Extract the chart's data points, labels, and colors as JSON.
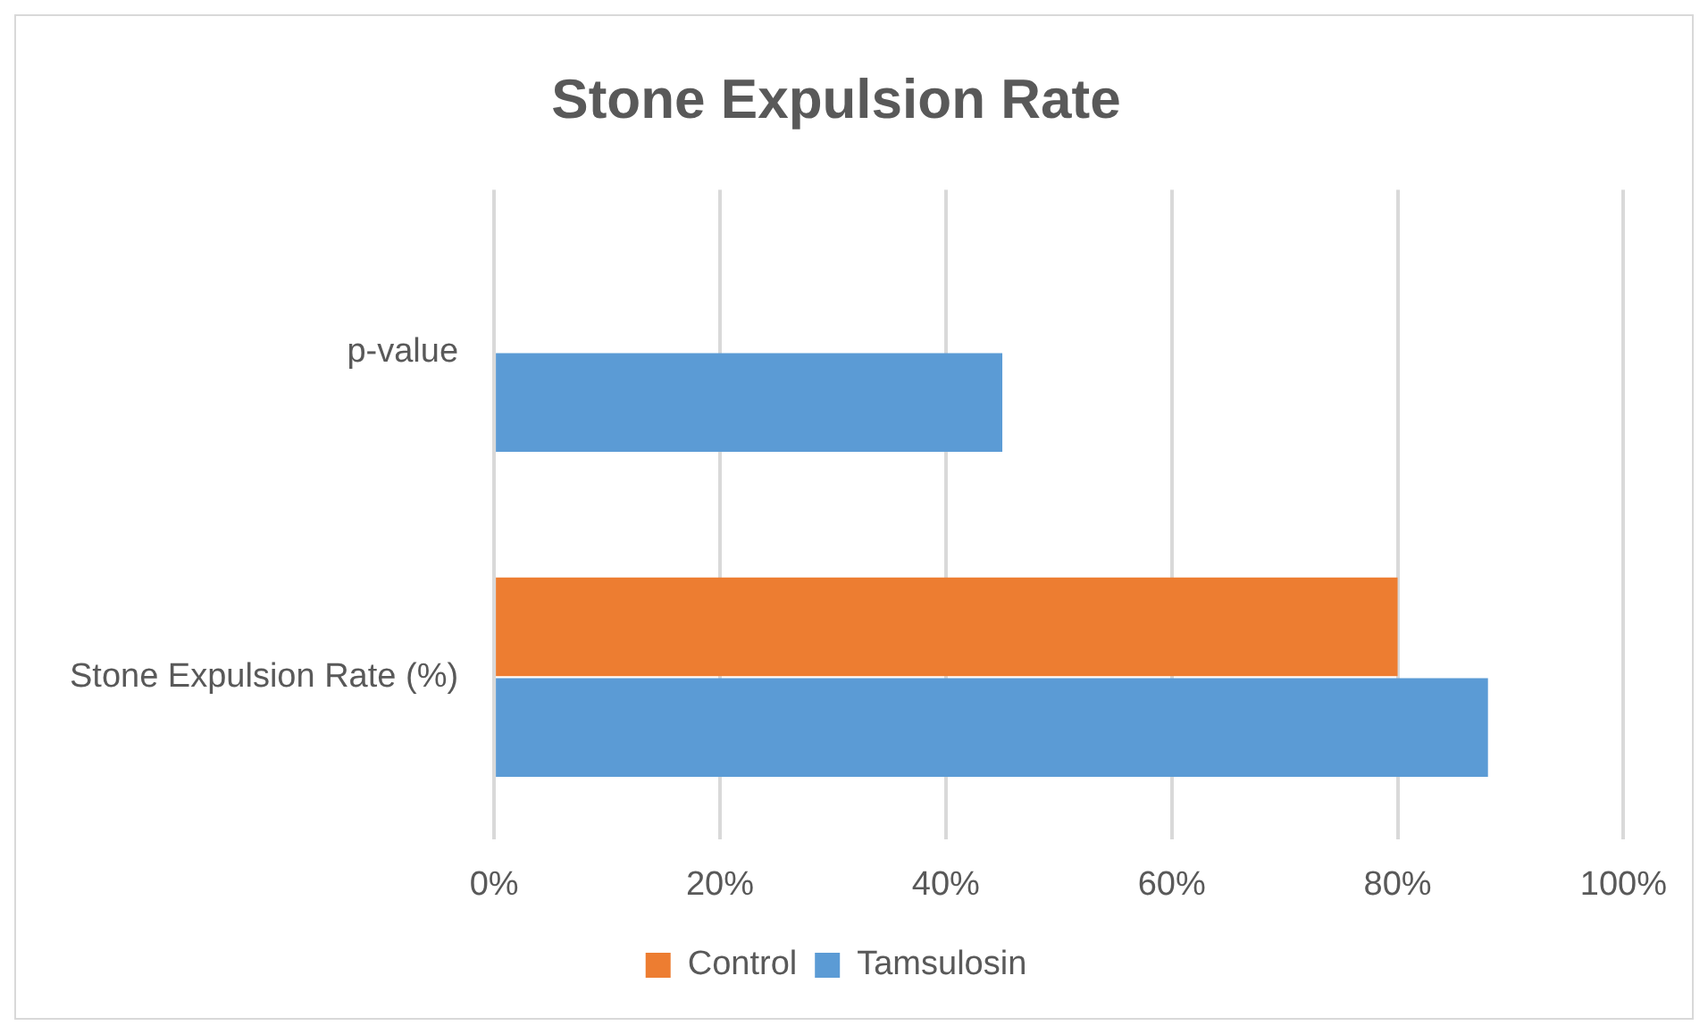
{
  "chart_data": {
    "type": "bar",
    "orientation": "horizontal",
    "title": "Stone Expulsion Rate",
    "categories": [
      "p-value",
      "Stone Expulsion Rate (%)"
    ],
    "series": [
      {
        "name": "Control",
        "color": "#ed7d31",
        "values": [
          null,
          80
        ]
      },
      {
        "name": "Tamsulosin",
        "color": "#5b9bd5",
        "values": [
          45,
          88
        ]
      }
    ],
    "xlim": [
      0,
      100
    ],
    "xticks": [
      {
        "value": 0,
        "label": "0%"
      },
      {
        "value": 20,
        "label": "20%"
      },
      {
        "value": 40,
        "label": "40%"
      },
      {
        "value": 60,
        "label": "60%"
      },
      {
        "value": 80,
        "label": "80%"
      },
      {
        "value": 100,
        "label": "100%"
      }
    ],
    "grid": "x",
    "legend": "bottom"
  }
}
